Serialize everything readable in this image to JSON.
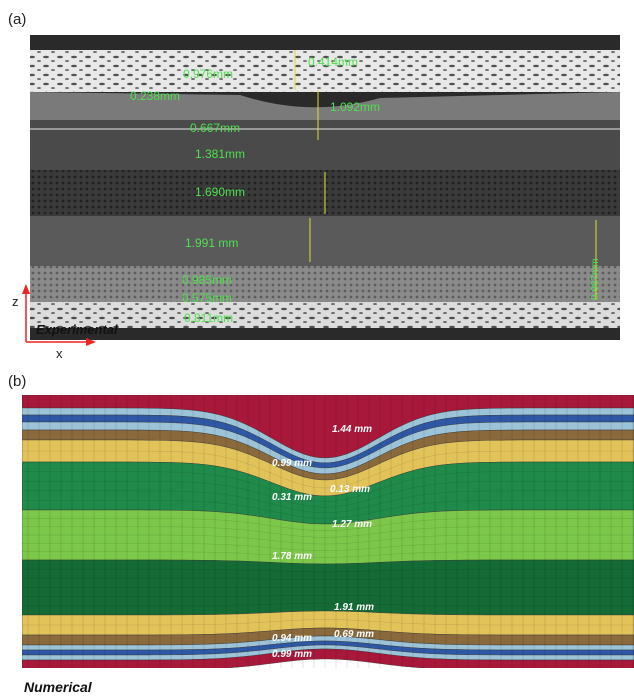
{
  "panels": [
    {
      "label": "(a)",
      "caption": "Experimental",
      "axis_z": "z",
      "axis_x": "x",
      "measurements": [
        "0.976mm",
        "0.414mm",
        "0.238mm",
        "1.092mm",
        "0.667mm",
        "1.381mm",
        "1.690mm",
        "1.991 mm",
        "0.985mm",
        "0.575mm",
        "0.811mm",
        "0.987mm"
      ]
    },
    {
      "label": "(b)",
      "caption": "Numerical",
      "measurements": [
        "1.44 mm",
        "0.99 mm",
        "0.31 mm",
        "0.13 mm",
        "1.27 mm",
        "1.78 mm",
        "1.91 mm",
        "0.94 mm",
        "0.69 mm",
        "0.99 mm"
      ]
    }
  ]
}
